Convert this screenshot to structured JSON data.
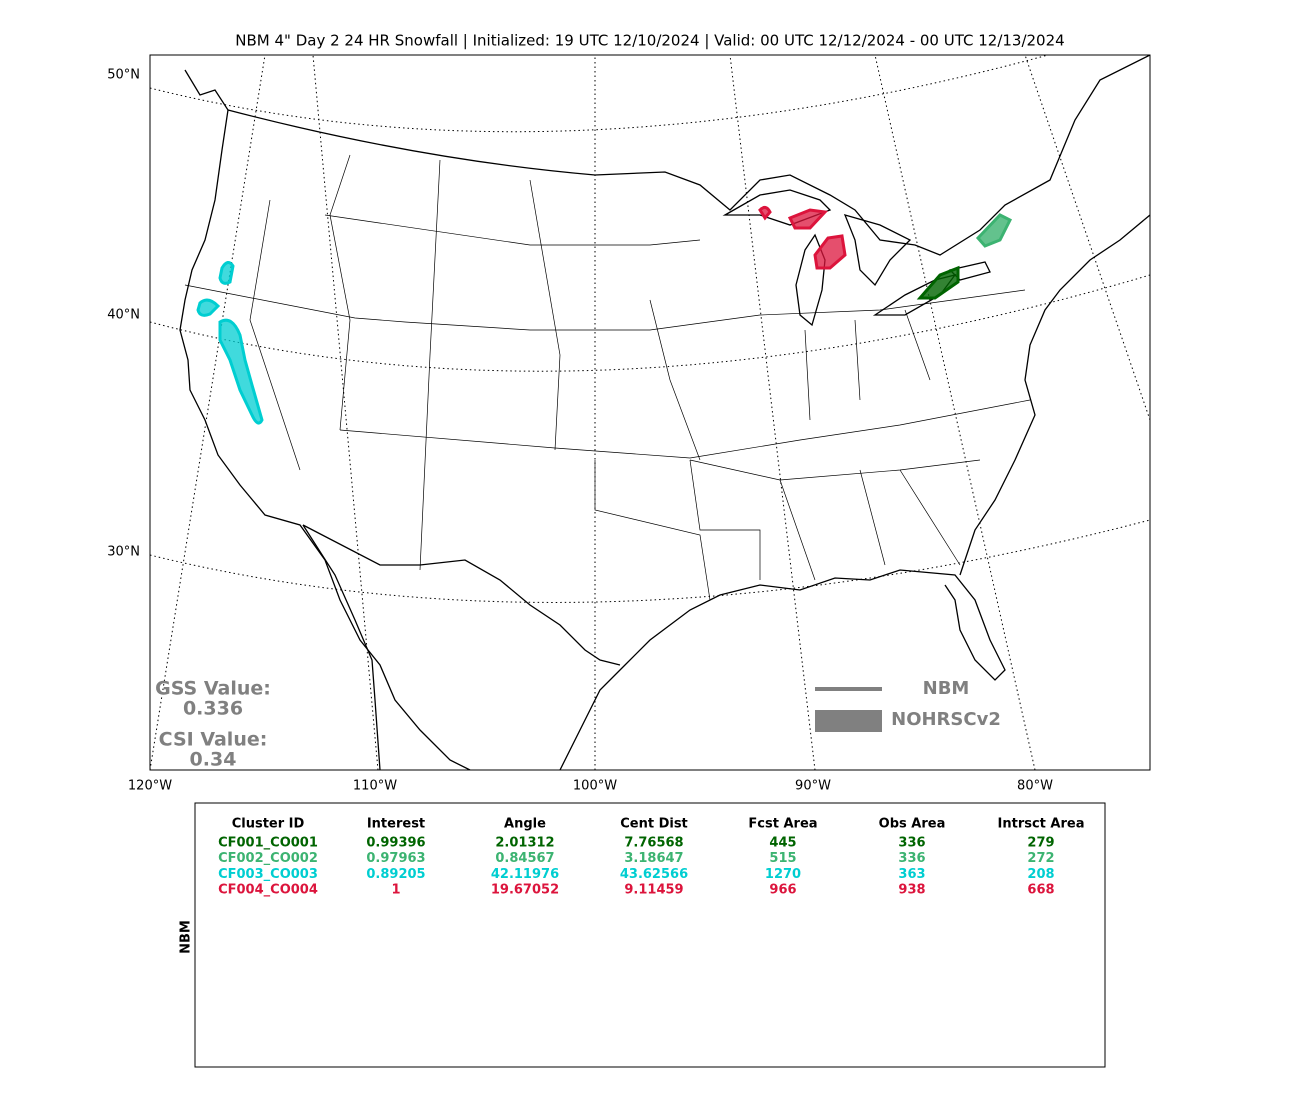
{
  "title": "NBM 4\" Day 2 24 HR Snowfall | Initialized: 19 UTC 12/10/2024 | Valid: 00 UTC 12/12/2024 - 00 UTC 12/13/2024",
  "map": {
    "lat_labels": [
      "50°N",
      "40°N",
      "30°N"
    ],
    "lon_labels": [
      "120°W",
      "110°W",
      "100°W",
      "90°W",
      "80°W"
    ]
  },
  "scores": {
    "gss_label": "GSS Value:",
    "gss": "0.336",
    "csi_label": "CSI Value:",
    "csi": "0.34"
  },
  "legend": {
    "line": "NBM",
    "fill": "NOHRSCv2"
  },
  "table": {
    "side_label": "NBM",
    "header": [
      "Cluster ID",
      "Interest",
      "Angle",
      "Cent Dist",
      "Fcst Area",
      "Obs Area",
      "Intrsct Area"
    ],
    "rows": [
      [
        "CF001_CO001",
        "0.99396",
        "2.01312",
        "7.76568",
        "445",
        "336",
        "279"
      ],
      [
        "CF002_CO002",
        "0.97963",
        "0.84567",
        "3.18647",
        "515",
        "336",
        "272"
      ],
      [
        "CF003_CO003",
        "0.89205",
        "42.11976",
        "43.62566",
        "1270",
        "363",
        "208"
      ],
      [
        "CF004_CO004",
        "1",
        "19.67052",
        "9.11459",
        "966",
        "938",
        "668"
      ]
    ],
    "row_colors": [
      "#006400",
      "#3cb371",
      "#00ced1",
      "#dc143c"
    ]
  }
}
